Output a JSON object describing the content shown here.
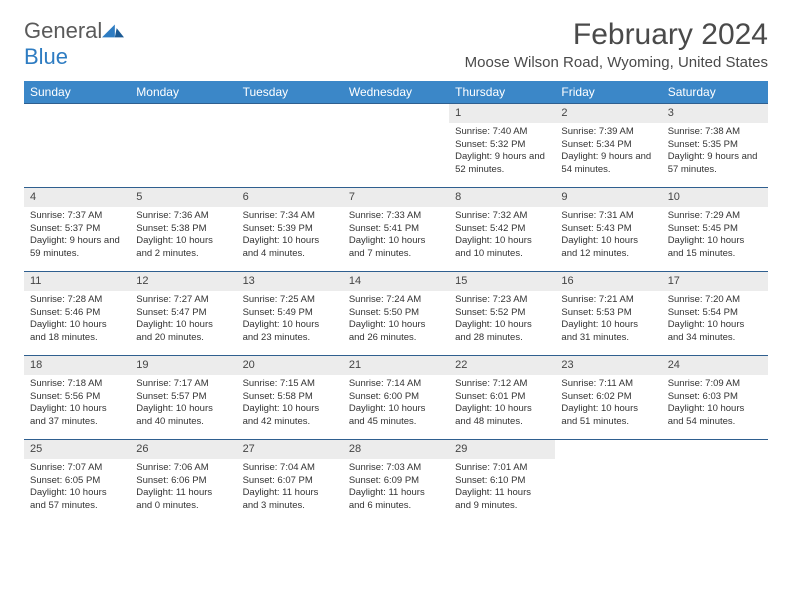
{
  "brand": {
    "part1": "General",
    "part2": "Blue"
  },
  "title": "February 2024",
  "location": "Moose Wilson Road, Wyoming, United States",
  "colors": {
    "header_bg": "#3b87c8",
    "header_text": "#ffffff",
    "border": "#2f5f8f",
    "daynum_bg": "#ececec",
    "brand_gray": "#5a5a5a",
    "brand_blue": "#2e7cc2"
  },
  "days_of_week": [
    "Sunday",
    "Monday",
    "Tuesday",
    "Wednesday",
    "Thursday",
    "Friday",
    "Saturday"
  ],
  "weeks": [
    [
      null,
      null,
      null,
      null,
      {
        "n": "1",
        "sunrise": "7:40 AM",
        "sunset": "5:32 PM",
        "daylight": "9 hours and 52 minutes."
      },
      {
        "n": "2",
        "sunrise": "7:39 AM",
        "sunset": "5:34 PM",
        "daylight": "9 hours and 54 minutes."
      },
      {
        "n": "3",
        "sunrise": "7:38 AM",
        "sunset": "5:35 PM",
        "daylight": "9 hours and 57 minutes."
      }
    ],
    [
      {
        "n": "4",
        "sunrise": "7:37 AM",
        "sunset": "5:37 PM",
        "daylight": "9 hours and 59 minutes."
      },
      {
        "n": "5",
        "sunrise": "7:36 AM",
        "sunset": "5:38 PM",
        "daylight": "10 hours and 2 minutes."
      },
      {
        "n": "6",
        "sunrise": "7:34 AM",
        "sunset": "5:39 PM",
        "daylight": "10 hours and 4 minutes."
      },
      {
        "n": "7",
        "sunrise": "7:33 AM",
        "sunset": "5:41 PM",
        "daylight": "10 hours and 7 minutes."
      },
      {
        "n": "8",
        "sunrise": "7:32 AM",
        "sunset": "5:42 PM",
        "daylight": "10 hours and 10 minutes."
      },
      {
        "n": "9",
        "sunrise": "7:31 AM",
        "sunset": "5:43 PM",
        "daylight": "10 hours and 12 minutes."
      },
      {
        "n": "10",
        "sunrise": "7:29 AM",
        "sunset": "5:45 PM",
        "daylight": "10 hours and 15 minutes."
      }
    ],
    [
      {
        "n": "11",
        "sunrise": "7:28 AM",
        "sunset": "5:46 PM",
        "daylight": "10 hours and 18 minutes."
      },
      {
        "n": "12",
        "sunrise": "7:27 AM",
        "sunset": "5:47 PM",
        "daylight": "10 hours and 20 minutes."
      },
      {
        "n": "13",
        "sunrise": "7:25 AM",
        "sunset": "5:49 PM",
        "daylight": "10 hours and 23 minutes."
      },
      {
        "n": "14",
        "sunrise": "7:24 AM",
        "sunset": "5:50 PM",
        "daylight": "10 hours and 26 minutes."
      },
      {
        "n": "15",
        "sunrise": "7:23 AM",
        "sunset": "5:52 PM",
        "daylight": "10 hours and 28 minutes."
      },
      {
        "n": "16",
        "sunrise": "7:21 AM",
        "sunset": "5:53 PM",
        "daylight": "10 hours and 31 minutes."
      },
      {
        "n": "17",
        "sunrise": "7:20 AM",
        "sunset": "5:54 PM",
        "daylight": "10 hours and 34 minutes."
      }
    ],
    [
      {
        "n": "18",
        "sunrise": "7:18 AM",
        "sunset": "5:56 PM",
        "daylight": "10 hours and 37 minutes."
      },
      {
        "n": "19",
        "sunrise": "7:17 AM",
        "sunset": "5:57 PM",
        "daylight": "10 hours and 40 minutes."
      },
      {
        "n": "20",
        "sunrise": "7:15 AM",
        "sunset": "5:58 PM",
        "daylight": "10 hours and 42 minutes."
      },
      {
        "n": "21",
        "sunrise": "7:14 AM",
        "sunset": "6:00 PM",
        "daylight": "10 hours and 45 minutes."
      },
      {
        "n": "22",
        "sunrise": "7:12 AM",
        "sunset": "6:01 PM",
        "daylight": "10 hours and 48 minutes."
      },
      {
        "n": "23",
        "sunrise": "7:11 AM",
        "sunset": "6:02 PM",
        "daylight": "10 hours and 51 minutes."
      },
      {
        "n": "24",
        "sunrise": "7:09 AM",
        "sunset": "6:03 PM",
        "daylight": "10 hours and 54 minutes."
      }
    ],
    [
      {
        "n": "25",
        "sunrise": "7:07 AM",
        "sunset": "6:05 PM",
        "daylight": "10 hours and 57 minutes."
      },
      {
        "n": "26",
        "sunrise": "7:06 AM",
        "sunset": "6:06 PM",
        "daylight": "11 hours and 0 minutes."
      },
      {
        "n": "27",
        "sunrise": "7:04 AM",
        "sunset": "6:07 PM",
        "daylight": "11 hours and 3 minutes."
      },
      {
        "n": "28",
        "sunrise": "7:03 AM",
        "sunset": "6:09 PM",
        "daylight": "11 hours and 6 minutes."
      },
      {
        "n": "29",
        "sunrise": "7:01 AM",
        "sunset": "6:10 PM",
        "daylight": "11 hours and 9 minutes."
      },
      null,
      null
    ]
  ],
  "labels": {
    "sunrise": "Sunrise: ",
    "sunset": "Sunset: ",
    "daylight": "Daylight: "
  }
}
